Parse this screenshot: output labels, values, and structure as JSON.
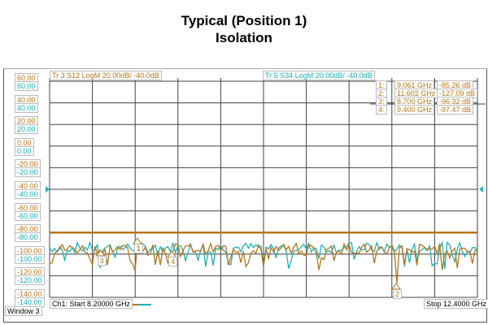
{
  "title": "Typical (Position 1)",
  "subtitle": "Isolation",
  "window_label": "Window 3",
  "colors": {
    "trace3": "#b5761a",
    "trace5": "#1eb3b5",
    "grid": "#404040"
  },
  "chart_data": {
    "type": "line",
    "x_unit": "GHz",
    "y_unit": "dB",
    "xlim": [
      8.2,
      12.4
    ],
    "ylim": [
      -140,
      60
    ],
    "y_ticks": [
      "60.00",
      "40.00",
      "20.00",
      "0.00",
      "-20.00",
      "-40.00",
      "-60.00",
      "-80.00",
      "-100.00",
      "-120.00",
      "-140.00"
    ],
    "grid": true,
    "reference_line_y": -80,
    "ref_marker_y": -40,
    "series": [
      {
        "name": "Tr 3  S12 LogM 20.00dB/  -40.0dB",
        "color": "#b5761a"
      },
      {
        "name": "Tr 5  S34 LogM 20.00dB/  -40.0dB",
        "color": "#1eb3b5"
      }
    ],
    "markers": [
      {
        "id": "1",
        "label": "1:",
        "freq": "9.061 GHz",
        "value": "-85.26 dB",
        "x": 9.061,
        "y": -85.26
      },
      {
        "id": "2",
        "label": "2:",
        "freq": "11.602 GHz",
        "value": "-127.09 dB",
        "x": 11.602,
        "y": -127.09
      },
      {
        "id": "3",
        "label": "3:",
        "freq": "8.700 GHz",
        "value": "-96.32 dB",
        "x": 8.7,
        "y": -96.32
      },
      {
        "id": "4",
        "label": "4:",
        "freq": "9.400 GHz",
        "value": "-97.47 dB",
        "x": 9.4,
        "y": -97.47
      }
    ],
    "start_label": "Ch1:  Start  8.20000 GHz",
    "stop_label": "Stop  12.4000 GHz"
  }
}
